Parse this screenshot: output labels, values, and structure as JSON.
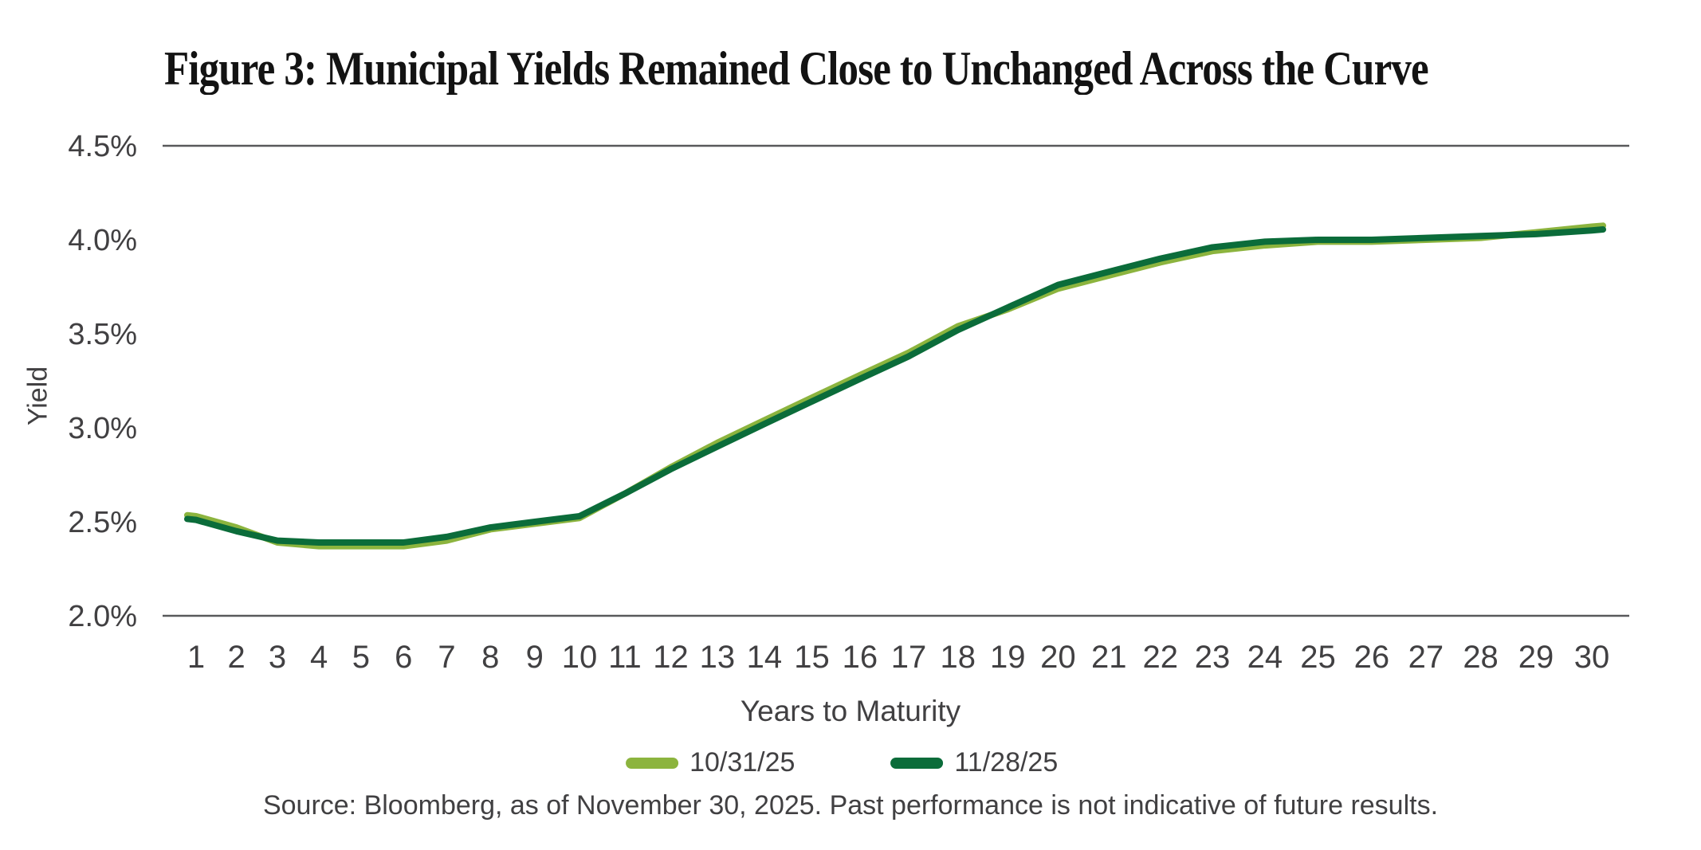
{
  "figure": {
    "title": "Figure 3: Municipal Yields Remained Close to Unchanged Across the Curve",
    "source": "Source: Bloomberg, as of November 30, 2025. Past performance is not indicative of future results."
  },
  "colors": {
    "series_10_31_25": "#8CB43E",
    "series_11_28_25": "#0B6C3A",
    "axis_line": "#58595B",
    "axis_text": "#414042",
    "title_text": "#131313"
  },
  "chart_data": {
    "type": "line",
    "title": "Figure 3: Municipal Yields Remained Close to Unchanged Across the Curve",
    "xlabel": "Years to Maturity",
    "ylabel": "Yield",
    "x": [
      1,
      2,
      3,
      4,
      5,
      6,
      7,
      8,
      9,
      10,
      11,
      12,
      13,
      14,
      15,
      16,
      17,
      18,
      19,
      20,
      21,
      22,
      23,
      24,
      25,
      26,
      27,
      28,
      29,
      30
    ],
    "series": [
      {
        "name": "10/31/25",
        "color": "#8CB43E",
        "values": [
          2.53,
          2.47,
          2.39,
          2.37,
          2.37,
          2.37,
          2.4,
          2.46,
          2.49,
          2.52,
          2.65,
          2.79,
          2.92,
          3.04,
          3.16,
          3.28,
          3.4,
          3.54,
          3.63,
          3.74,
          3.81,
          3.88,
          3.94,
          3.97,
          3.99,
          3.99,
          4.0,
          4.01,
          4.04,
          4.07
        ]
      },
      {
        "name": "11/28/25",
        "color": "#0B6C3A",
        "values": [
          2.51,
          2.45,
          2.4,
          2.39,
          2.39,
          2.39,
          2.42,
          2.47,
          2.5,
          2.53,
          2.65,
          2.78,
          2.9,
          3.02,
          3.14,
          3.26,
          3.38,
          3.52,
          3.64,
          3.76,
          3.83,
          3.9,
          3.96,
          3.99,
          4.0,
          4.0,
          4.01,
          4.02,
          4.03,
          4.05
        ]
      }
    ],
    "ylim": [
      2.0,
      4.5
    ],
    "yticks": [
      4.5,
      4.0,
      3.5,
      3.0,
      2.5,
      2.0
    ],
    "ytick_labels": [
      "4.5%",
      "4.0%",
      "3.5%",
      "3.0%",
      "2.5%",
      "2.0%"
    ],
    "gridlines_y": [
      4.5,
      2.0
    ],
    "grid": "top-and-bottom-only",
    "legend_position": "bottom"
  }
}
